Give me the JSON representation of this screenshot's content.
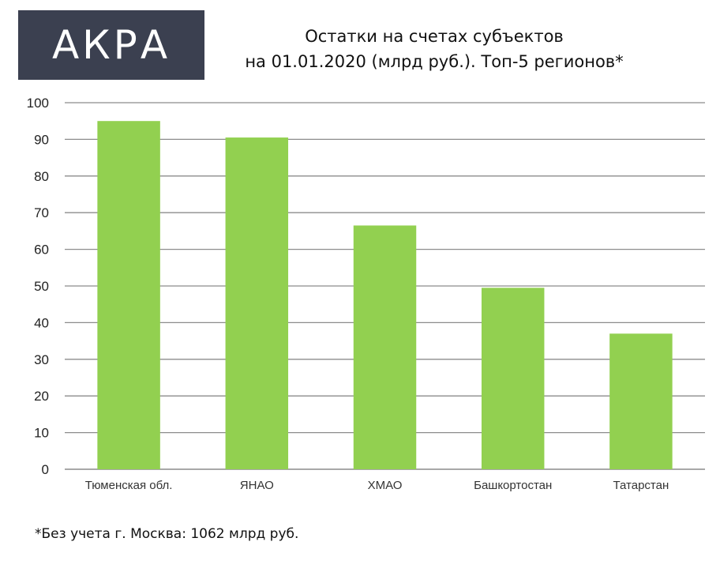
{
  "logo": {
    "text": "АКРА"
  },
  "title": {
    "line1": "Остатки на счетах субъектов",
    "line2": "на 01.01.2020 (млрд руб.). Топ-5 регионов*"
  },
  "footnote": "*Без учета г. Москва: 1062 млрд руб.",
  "colors": {
    "bar": "#92d050",
    "grid": "#8c8c8c",
    "logo_bg": "#3b4050"
  },
  "chart_data": {
    "type": "bar",
    "categories": [
      "Тюменская обл.",
      "ЯНАО",
      "ХМАО",
      "Башкортостан",
      "Татарстан"
    ],
    "values": [
      95,
      90.5,
      66.5,
      49.5,
      37
    ],
    "title": "Остатки на счетах субъектов на 01.01.2020 (млрд руб.). Топ-5 регионов*",
    "xlabel": "",
    "ylabel": "",
    "ylim": [
      0,
      100
    ],
    "yticks": [
      0,
      10,
      20,
      30,
      40,
      50,
      60,
      70,
      80,
      90,
      100
    ],
    "grid": true,
    "legend": "none"
  }
}
